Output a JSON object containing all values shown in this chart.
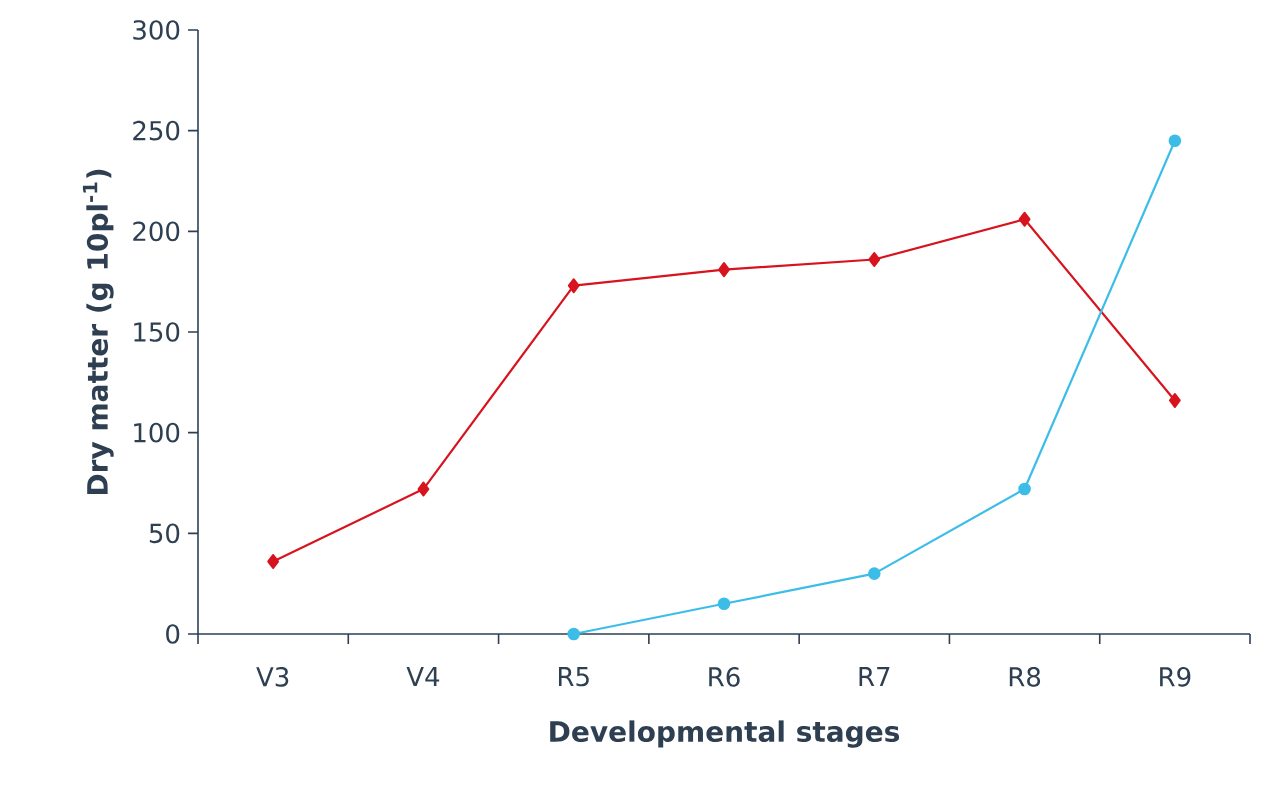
{
  "chart_data": {
    "type": "line",
    "xlabel": "Developmental stages",
    "ylabel": "Dry matter (g 10pl$^{-1}$)",
    "categories": [
      "V3",
      "V4",
      "R5",
      "R6",
      "R7",
      "R8",
      "R9"
    ],
    "series": [
      {
        "color": "#d7141e",
        "marker": "diamond",
        "values": [
          36,
          72,
          173,
          181,
          186,
          206,
          116
        ]
      },
      {
        "color": "#3cbde8",
        "marker": "circle",
        "values": [
          null,
          null,
          0,
          15,
          30,
          72,
          245
        ]
      }
    ],
    "ylim": [
      0,
      300
    ],
    "yticks": [
      0,
      50,
      100,
      150,
      200,
      250,
      300
    ],
    "grid": false
  }
}
